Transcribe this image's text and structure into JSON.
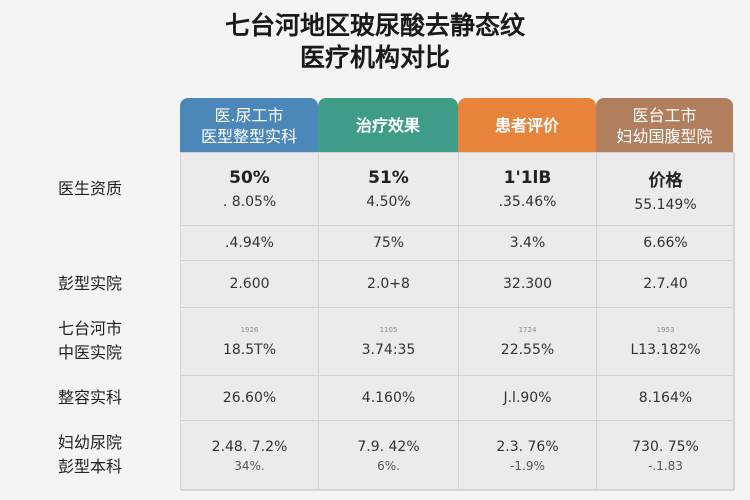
{
  "title": [
    "七台河地区玻尿酸去静态纹",
    "医疗机构对比"
  ],
  "headers": [
    {
      "lines": [
        "医.尿工市",
        "医型整型实科"
      ],
      "color": "#4b87b9"
    },
    {
      "lines": [
        "治疗效果"
      ],
      "color": "#3f9d87"
    },
    {
      "lines": [
        "患者评价"
      ],
      "color": "#e8833b"
    },
    {
      "lines": [
        "医台工市",
        "妇幼国腹型院"
      ],
      "color": "#b17f5e"
    }
  ],
  "rows": [
    {
      "label": [
        "医生资质"
      ],
      "cells": [
        {
          "big": "50%",
          "main": ". 8.05%"
        },
        {
          "big": "51%",
          "main": "4.50%"
        },
        {
          "big": "1'1lB",
          "main": ".35.46%"
        },
        {
          "big": "价格",
          "main": "55.149%"
        }
      ]
    },
    {
      "label": [],
      "cells": [
        {
          "main": ".4.94%"
        },
        {
          "main": "75%"
        },
        {
          "main": "3.4%"
        },
        {
          "main": "6.66%"
        }
      ]
    },
    {
      "label": [
        "彭型实院"
      ],
      "cells": [
        {
          "main": "2.600"
        },
        {
          "main": "2.0+8"
        },
        {
          "main": "32.300"
        },
        {
          "main": "2.7.40"
        }
      ]
    },
    {
      "label": [
        "七台河市",
        "中医实院"
      ],
      "cells": [
        {
          "tiny": "1926",
          "main": "18.5T%"
        },
        {
          "tiny": "1105",
          "main": "3.74:35"
        },
        {
          "tiny": "1724",
          "main": "22.55%"
        },
        {
          "tiny": "1953",
          "main": "L13.182%"
        }
      ]
    },
    {
      "label": [
        "整容实科"
      ],
      "cells": [
        {
          "main": "26.60%"
        },
        {
          "main": "4.160%"
        },
        {
          "main": "J.l.90%"
        },
        {
          "main": "8.164%"
        }
      ]
    },
    {
      "label": [
        "妇幼尿院",
        "彭型本科"
      ],
      "cells": [
        {
          "main": "2.48. 7.2%",
          "sub": "34%."
        },
        {
          "main": "7.9. 42%",
          "sub": "6%."
        },
        {
          "main": "2.3. 76%",
          "sub": "-1.9%"
        },
        {
          "main": "730. 75%",
          "sub": "-.1.83"
        }
      ]
    }
  ]
}
